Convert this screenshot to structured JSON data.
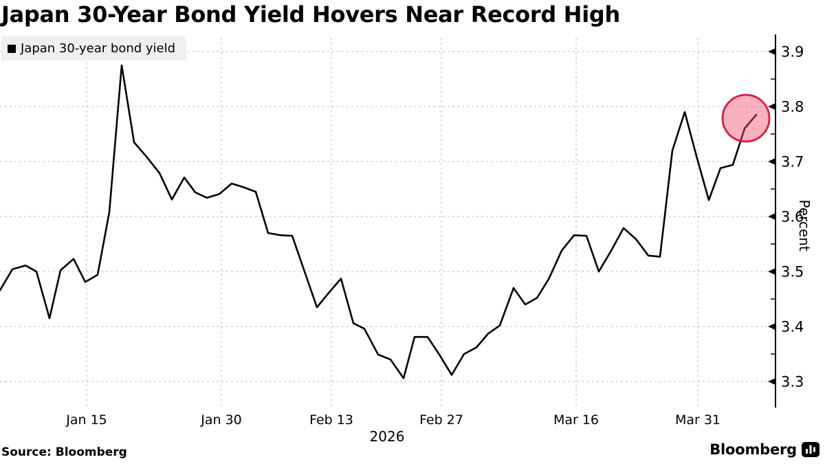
{
  "header": {
    "title": "Japan 30-Year Bond Yield Hovers Near Record High"
  },
  "legend": {
    "label": "Japan 30-year bond yield",
    "swatch_color": "#000000"
  },
  "source": {
    "label": "Source: Bloomberg"
  },
  "branding": {
    "logo_text": "Bloomberg",
    "logo_icon": "bar-chart-bubble-icon"
  },
  "chart_data": {
    "type": "line",
    "title": "Japan 30-Year Bond Yield Hovers Near Record High",
    "series_name": "Japan 30-year bond yield",
    "xlabel": "",
    "ylabel": "Percent",
    "year_label": "2026",
    "ylim": [
      3.25,
      3.93
    ],
    "y_ticks": [
      3.3,
      3.4,
      3.5,
      3.6,
      3.7,
      3.8,
      3.9
    ],
    "y_minor_ticks": [
      3.35,
      3.45,
      3.55,
      3.65,
      3.75,
      3.85
    ],
    "x_tick_labels": [
      "Jan 15",
      "Jan 30",
      "Feb 13",
      "Feb 27",
      "Mar 16",
      "Mar 31"
    ],
    "grid": "dashed, both axes",
    "legend_position": "top-left",
    "line_color": "#000000",
    "highlight": {
      "type": "circle",
      "color": "#e11743",
      "fill": "#f2516d",
      "at_date": "Apr 7",
      "at_value": 3.79
    },
    "points": [
      {
        "d": "Jan 6",
        "v": 3.466
      },
      {
        "d": "Jan 7",
        "v": 3.504
      },
      {
        "d": "Jan 8",
        "v": 3.511
      },
      {
        "d": "Jan 9",
        "v": 3.5
      },
      {
        "d": "Jan 12",
        "v": 3.415
      },
      {
        "d": "Jan 13",
        "v": 3.502
      },
      {
        "d": "Jan 14",
        "v": 3.523
      },
      {
        "d": "Jan 15",
        "v": 3.481
      },
      {
        "d": "Jan 16",
        "v": 3.494
      },
      {
        "d": "Jan 19",
        "v": 3.608
      },
      {
        "d": "Jan 20",
        "v": 3.875
      },
      {
        "d": "Jan 21",
        "v": 3.735
      },
      {
        "d": "Jan 22",
        "v": 3.709
      },
      {
        "d": "Jan 23",
        "v": 3.679
      },
      {
        "d": "Jan 26",
        "v": 3.631
      },
      {
        "d": "Jan 27",
        "v": 3.671
      },
      {
        "d": "Jan 28",
        "v": 3.644
      },
      {
        "d": "Jan 29",
        "v": 3.634
      },
      {
        "d": "Jan 30",
        "v": 3.641
      },
      {
        "d": "Feb 2",
        "v": 3.66
      },
      {
        "d": "Feb 3",
        "v": 3.653
      },
      {
        "d": "Feb 4",
        "v": 3.645
      },
      {
        "d": "Feb 5",
        "v": 3.57
      },
      {
        "d": "Feb 6",
        "v": 3.566
      },
      {
        "d": "Feb 9",
        "v": 3.565
      },
      {
        "d": "Feb 11",
        "v": 3.5
      },
      {
        "d": "Feb 12",
        "v": 3.435
      },
      {
        "d": "Feb 13",
        "v": 3.461
      },
      {
        "d": "Feb 16",
        "v": 3.487
      },
      {
        "d": "Feb 17",
        "v": 3.406
      },
      {
        "d": "Feb 18",
        "v": 3.396
      },
      {
        "d": "Feb 19",
        "v": 3.349
      },
      {
        "d": "Feb 20",
        "v": 3.34
      },
      {
        "d": "Feb 23",
        "v": 3.306
      },
      {
        "d": "Feb 25",
        "v": 3.381
      },
      {
        "d": "Feb 26",
        "v": 3.381
      },
      {
        "d": "Feb 27",
        "v": 3.347
      },
      {
        "d": "Mar 2",
        "v": 3.312
      },
      {
        "d": "Mar 3",
        "v": 3.35
      },
      {
        "d": "Mar 4",
        "v": 3.362
      },
      {
        "d": "Mar 5",
        "v": 3.387
      },
      {
        "d": "Mar 6",
        "v": 3.402
      },
      {
        "d": "Mar 9",
        "v": 3.47
      },
      {
        "d": "Mar 10",
        "v": 3.44
      },
      {
        "d": "Mar 11",
        "v": 3.452
      },
      {
        "d": "Mar 12",
        "v": 3.486
      },
      {
        "d": "Mar 13",
        "v": 3.538
      },
      {
        "d": "Mar 16",
        "v": 3.566
      },
      {
        "d": "Mar 17",
        "v": 3.565
      },
      {
        "d": "Mar 18",
        "v": 3.5
      },
      {
        "d": "Mar 19",
        "v": 3.538
      },
      {
        "d": "Mar 20",
        "v": 3.579
      },
      {
        "d": "Mar 23",
        "v": 3.559
      },
      {
        "d": "Mar 24",
        "v": 3.529
      },
      {
        "d": "Mar 26",
        "v": 3.527
      },
      {
        "d": "Mar 27",
        "v": 3.72
      },
      {
        "d": "Mar 30",
        "v": 3.79
      },
      {
        "d": "Mar 31",
        "v": 3.71
      },
      {
        "d": "Apr 1",
        "v": 3.63
      },
      {
        "d": "Apr 2",
        "v": 3.688
      },
      {
        "d": "Apr 3",
        "v": 3.694
      },
      {
        "d": "Apr 6",
        "v": 3.76
      },
      {
        "d": "Apr 7",
        "v": 3.785
      }
    ]
  }
}
